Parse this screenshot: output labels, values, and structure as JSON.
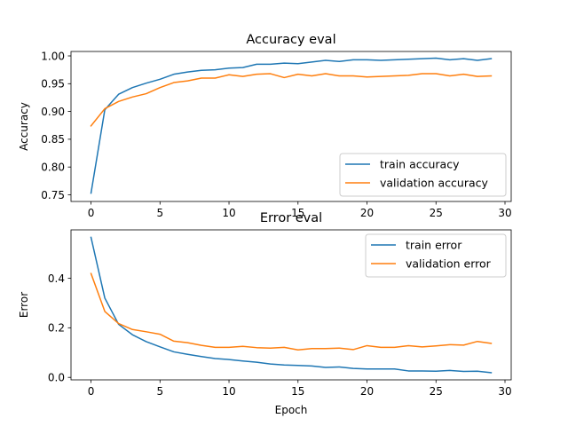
{
  "chart_data": [
    {
      "type": "line",
      "title": "Accuracy eval",
      "xlabel": "",
      "ylabel": "Accuracy",
      "xlim": [
        -1.45,
        30.45
      ],
      "ylim": [
        0.738,
        1.008
      ],
      "xticks": [
        0,
        5,
        10,
        15,
        20,
        25,
        30
      ],
      "xtick_labels": [
        "0",
        "5",
        "10",
        "15",
        "20",
        "25",
        "30"
      ],
      "yticks": [
        0.75,
        0.8,
        0.85,
        0.9,
        0.95,
        1.0
      ],
      "ytick_labels": [
        "0.75",
        "0.80",
        "0.85",
        "0.90",
        "0.95",
        "1.00"
      ],
      "grid": false,
      "legend_position": "lower-right",
      "x": [
        0,
        1,
        2,
        3,
        4,
        5,
        6,
        7,
        8,
        9,
        10,
        11,
        12,
        13,
        14,
        15,
        16,
        17,
        18,
        19,
        20,
        21,
        22,
        23,
        24,
        25,
        26,
        27,
        28,
        29
      ],
      "series": [
        {
          "name": "train accuracy",
          "color": "#1f77b4",
          "values": [
            0.753,
            0.903,
            0.931,
            0.943,
            0.951,
            0.958,
            0.967,
            0.971,
            0.974,
            0.975,
            0.978,
            0.979,
            0.985,
            0.985,
            0.987,
            0.986,
            0.989,
            0.992,
            0.99,
            0.993,
            0.993,
            0.992,
            0.993,
            0.994,
            0.995,
            0.996,
            0.993,
            0.995,
            0.992,
            0.995
          ]
        },
        {
          "name": "validation accuracy",
          "color": "#ff7f0e",
          "values": [
            0.874,
            0.905,
            0.918,
            0.926,
            0.932,
            0.943,
            0.952,
            0.955,
            0.96,
            0.96,
            0.966,
            0.963,
            0.967,
            0.968,
            0.961,
            0.967,
            0.964,
            0.968,
            0.964,
            0.964,
            0.962,
            0.963,
            0.964,
            0.965,
            0.968,
            0.968,
            0.964,
            0.967,
            0.963,
            0.964
          ]
        }
      ]
    },
    {
      "type": "line",
      "title": "Error eval",
      "xlabel": "Epoch",
      "ylabel": "Error",
      "xlim": [
        -1.45,
        30.45
      ],
      "ylim": [
        -0.01,
        0.595
      ],
      "xticks": [
        0,
        5,
        10,
        15,
        20,
        25,
        30
      ],
      "xtick_labels": [
        "0",
        "5",
        "10",
        "15",
        "20",
        "25",
        "30"
      ],
      "yticks": [
        0.0,
        0.2,
        0.4
      ],
      "ytick_labels": [
        "0.0",
        "0.2",
        "0.4"
      ],
      "grid": false,
      "legend_position": "upper-right",
      "x": [
        0,
        1,
        2,
        3,
        4,
        5,
        6,
        7,
        8,
        9,
        10,
        11,
        12,
        13,
        14,
        15,
        16,
        17,
        18,
        19,
        20,
        21,
        22,
        23,
        24,
        25,
        26,
        27,
        28,
        29
      ],
      "series": [
        {
          "name": "train error",
          "color": "#1f77b4",
          "values": [
            0.565,
            0.32,
            0.214,
            0.172,
            0.144,
            0.123,
            0.103,
            0.093,
            0.084,
            0.076,
            0.072,
            0.066,
            0.061,
            0.054,
            0.05,
            0.048,
            0.046,
            0.04,
            0.042,
            0.036,
            0.034,
            0.034,
            0.034,
            0.026,
            0.026,
            0.025,
            0.028,
            0.024,
            0.025,
            0.019
          ]
        },
        {
          "name": "validation error",
          "color": "#ff7f0e",
          "values": [
            0.419,
            0.266,
            0.217,
            0.193,
            0.184,
            0.174,
            0.146,
            0.14,
            0.129,
            0.121,
            0.121,
            0.125,
            0.12,
            0.118,
            0.121,
            0.111,
            0.116,
            0.116,
            0.118,
            0.112,
            0.128,
            0.121,
            0.121,
            0.128,
            0.123,
            0.127,
            0.132,
            0.13,
            0.145,
            0.137
          ]
        }
      ]
    }
  ]
}
